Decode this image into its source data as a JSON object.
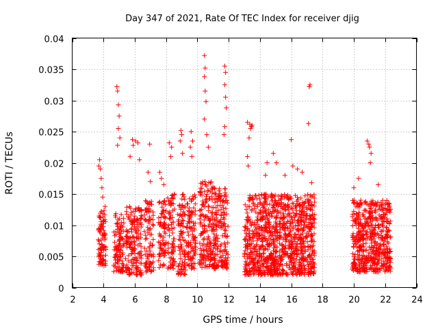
{
  "chart_data": {
    "type": "scatter",
    "title": "Day 347 of 2021, Rate Of TEC Index for receiver djig",
    "xlabel": "GPS time / hours",
    "ylabel": "ROTI / TECUs",
    "xlim": [
      2,
      24
    ],
    "ylim": [
      0,
      0.04
    ],
    "xticks": [
      "2",
      "4",
      "6",
      "8",
      "10",
      "12",
      "14",
      "16",
      "18",
      "20",
      "22",
      "24"
    ],
    "yticks": [
      "0",
      "0.005",
      "0.01",
      "0.015",
      "0.02",
      "0.025",
      "0.03",
      "0.035",
      "0.04"
    ],
    "grid": true,
    "marker": "+",
    "color": "#ff0000",
    "seed": 347,
    "clusters": [
      {
        "x_start": 3.65,
        "x_end": 4.15,
        "y_low": 0.0035,
        "y_high": 0.013,
        "count": 90,
        "peaks": [
          [
            3.75,
            0.0205
          ],
          [
            3.8,
            0.019
          ],
          [
            3.85,
            0.0175
          ],
          [
            3.9,
            0.016
          ],
          [
            3.95,
            0.0145
          ],
          [
            3.7,
            0.0195
          ]
        ]
      },
      {
        "x_start": 4.65,
        "x_end": 5.3,
        "y_low": 0.0025,
        "y_high": 0.012,
        "count": 110,
        "peaks": [
          [
            4.85,
            0.0322
          ],
          [
            4.9,
            0.0315
          ],
          [
            4.95,
            0.0293
          ],
          [
            5.0,
            0.0275
          ],
          [
            4.95,
            0.0255
          ],
          [
            5.05,
            0.024
          ],
          [
            4.9,
            0.0228
          ]
        ]
      },
      {
        "x_start": 5.4,
        "x_end": 6.45,
        "y_low": 0.002,
        "y_high": 0.013,
        "count": 170,
        "peaks": [
          [
            5.85,
            0.0237
          ],
          [
            5.9,
            0.0228
          ],
          [
            6.05,
            0.0235
          ],
          [
            6.2,
            0.0232
          ],
          [
            5.7,
            0.021
          ],
          [
            6.3,
            0.0205
          ]
        ]
      },
      {
        "x_start": 6.6,
        "x_end": 7.2,
        "y_low": 0.0025,
        "y_high": 0.014,
        "count": 90,
        "peaks": [
          [
            6.95,
            0.023
          ],
          [
            6.85,
            0.0185
          ],
          [
            7.0,
            0.017
          ]
        ]
      },
      {
        "x_start": 7.5,
        "x_end": 8.0,
        "y_low": 0.003,
        "y_high": 0.014,
        "count": 80,
        "peaks": [
          [
            7.6,
            0.0185
          ],
          [
            7.7,
            0.0175
          ],
          [
            7.85,
            0.0165
          ]
        ]
      },
      {
        "x_start": 8.1,
        "x_end": 8.55,
        "y_low": 0.003,
        "y_high": 0.015,
        "count": 80,
        "peaks": [
          [
            8.2,
            0.0232
          ],
          [
            8.35,
            0.0225
          ],
          [
            8.3,
            0.021
          ]
        ]
      },
      {
        "x_start": 8.75,
        "x_end": 9.25,
        "y_low": 0.002,
        "y_high": 0.015,
        "count": 90,
        "peaks": [
          [
            8.95,
            0.0252
          ],
          [
            9.0,
            0.0245
          ],
          [
            8.9,
            0.0235
          ],
          [
            9.05,
            0.0215
          ]
        ]
      },
      {
        "x_start": 9.3,
        "x_end": 9.9,
        "y_low": 0.003,
        "y_high": 0.015,
        "count": 100,
        "peaks": [
          [
            9.6,
            0.025
          ],
          [
            9.55,
            0.0225
          ],
          [
            9.65,
            0.021
          ],
          [
            9.7,
            0.0235
          ]
        ]
      },
      {
        "x_start": 10.15,
        "x_end": 11.1,
        "y_low": 0.003,
        "y_high": 0.017,
        "count": 190,
        "peaks": [
          [
            10.45,
            0.0372
          ],
          [
            10.5,
            0.0352
          ],
          [
            10.45,
            0.0338
          ],
          [
            10.5,
            0.0315
          ],
          [
            10.55,
            0.0298
          ],
          [
            10.45,
            0.027
          ],
          [
            10.6,
            0.0245
          ],
          [
            10.7,
            0.0225
          ]
        ]
      },
      {
        "x_start": 11.1,
        "x_end": 11.95,
        "y_low": 0.003,
        "y_high": 0.016,
        "count": 160,
        "peaks": [
          [
            11.75,
            0.0355
          ],
          [
            11.8,
            0.0345
          ],
          [
            11.75,
            0.0325
          ],
          [
            11.8,
            0.0305
          ],
          [
            11.85,
            0.0288
          ],
          [
            11.75,
            0.0258
          ],
          [
            11.7,
            0.0245
          ]
        ]
      },
      {
        "x_start": 13.0,
        "x_end": 14.2,
        "y_low": 0.002,
        "y_high": 0.015,
        "count": 260,
        "peaks": [
          [
            13.2,
            0.0265
          ],
          [
            13.35,
            0.0262
          ],
          [
            13.5,
            0.026
          ],
          [
            13.45,
            0.0258
          ],
          [
            13.4,
            0.0255
          ],
          [
            13.3,
            0.024
          ],
          [
            13.2,
            0.021
          ],
          [
            13.25,
            0.0195
          ]
        ]
      },
      {
        "x_start": 14.2,
        "x_end": 15.9,
        "y_low": 0.002,
        "y_high": 0.015,
        "count": 420,
        "peaks": [
          [
            14.45,
            0.02
          ],
          [
            14.85,
            0.0215
          ],
          [
            15.05,
            0.02
          ],
          [
            15.6,
            0.018
          ],
          [
            14.35,
            0.018
          ]
        ]
      },
      {
        "x_start": 15.9,
        "x_end": 17.5,
        "y_low": 0.002,
        "y_high": 0.015,
        "count": 380,
        "peaks": [
          [
            16.0,
            0.0237
          ],
          [
            16.1,
            0.0195
          ],
          [
            16.4,
            0.019
          ],
          [
            16.7,
            0.0185
          ],
          [
            17.2,
            0.0325
          ],
          [
            17.15,
            0.0322
          ],
          [
            17.1,
            0.0263
          ],
          [
            17.3,
            0.0168
          ]
        ]
      },
      {
        "x_start": 19.9,
        "x_end": 22.35,
        "y_low": 0.0025,
        "y_high": 0.014,
        "count": 560,
        "peaks": [
          [
            20.85,
            0.0235
          ],
          [
            20.95,
            0.023
          ],
          [
            21.0,
            0.0225
          ],
          [
            21.1,
            0.0215
          ],
          [
            21.05,
            0.02
          ],
          [
            20.3,
            0.0175
          ],
          [
            21.55,
            0.0165
          ],
          [
            20.0,
            0.016
          ]
        ]
      }
    ]
  }
}
